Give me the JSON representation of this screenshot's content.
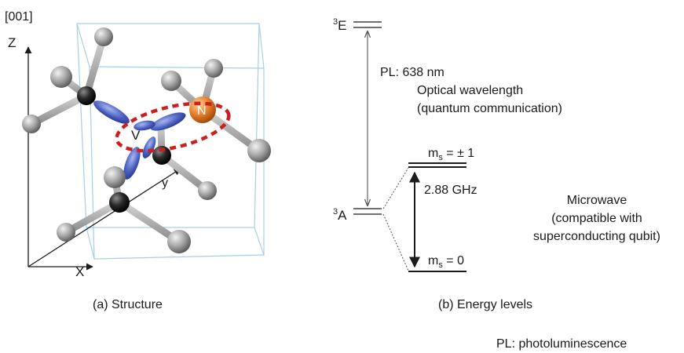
{
  "structure": {
    "direction_label": "[001]",
    "axis_z": "Z",
    "axis_x": "X",
    "axis_y": "y",
    "vacancy_label": "V",
    "nitrogen_label": "N",
    "caption": "(a) Structure",
    "colors": {
      "carbon": "#9a9a9a",
      "carbon_dark": "#2a2a2a",
      "nitrogen": "#e07a28",
      "orbital": "#4a5fc0",
      "highlight": "#cc1f1f",
      "cell_edges": "#a8cfe6"
    }
  },
  "energy": {
    "excited_state": {
      "prefix": "3",
      "label": "E"
    },
    "ground_state": {
      "prefix": "3",
      "label": "A"
    },
    "pl_label": "PL:  638 nm",
    "optical_line1": "Optical wavelength",
    "optical_line2": "(quantum communication)",
    "ms_pm1": {
      "m": "m",
      "sub": "s",
      "rest": " = ± 1"
    },
    "ms_0": {
      "m": "m",
      "sub": "s",
      "rest": " = 0"
    },
    "splitting": "2.88 GHz",
    "microwave_line1": "Microwave",
    "microwave_line2": "(compatible with",
    "microwave_line3": "superconducting qubit)",
    "caption": "(b) Energy levels"
  },
  "footnote": "PL: photoluminescence"
}
